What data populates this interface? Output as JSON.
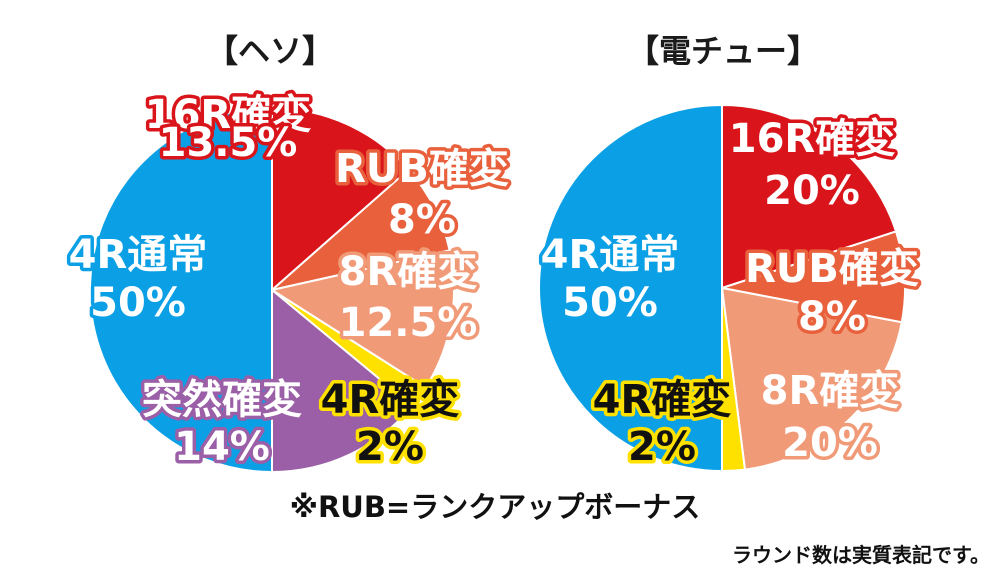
{
  "chart_data": [
    {
      "type": "pie",
      "title": "【ヘソ】",
      "slices": [
        {
          "label_line1": "16R確変",
          "label_line2": "13.5%",
          "value": 13.5,
          "color": "#d9141b"
        },
        {
          "label_line1": "RUB確変",
          "label_line2": "8%",
          "value": 8,
          "color": "#e8613c"
        },
        {
          "label_line1": "8R確変",
          "label_line2": "12.5%",
          "value": 12.5,
          "color": "#f19a77"
        },
        {
          "label_line1": "4R確変",
          "label_line2": "2%",
          "value": 2,
          "color": "#ffe100"
        },
        {
          "label_line1": "突然確変",
          "label_line2": "14%",
          "value": 14,
          "color": "#9a5fa6"
        },
        {
          "label_line1": "4R通常",
          "label_line2": "50%",
          "value": 50,
          "color": "#0ba0e5"
        }
      ]
    },
    {
      "type": "pie",
      "title": "【電チュー】",
      "slices": [
        {
          "label_line1": "16R確変",
          "label_line2": "20%",
          "value": 20,
          "color": "#d9141b"
        },
        {
          "label_line1": "RUB確変",
          "label_line2": "8%",
          "value": 8,
          "color": "#e8613c"
        },
        {
          "label_line1": "8R確変",
          "label_line2": "20%",
          "value": 20,
          "color": "#f19a77"
        },
        {
          "label_line1": "4R確変",
          "label_line2": "2%",
          "value": 2,
          "color": "#ffe100"
        },
        {
          "label_line1": "4R通常",
          "label_line2": "50%",
          "value": 50,
          "color": "#0ba0e5"
        }
      ]
    }
  ],
  "footnote": "※RUB=ランクアップボーナス",
  "note": "ラウンド数は実質表記です。"
}
